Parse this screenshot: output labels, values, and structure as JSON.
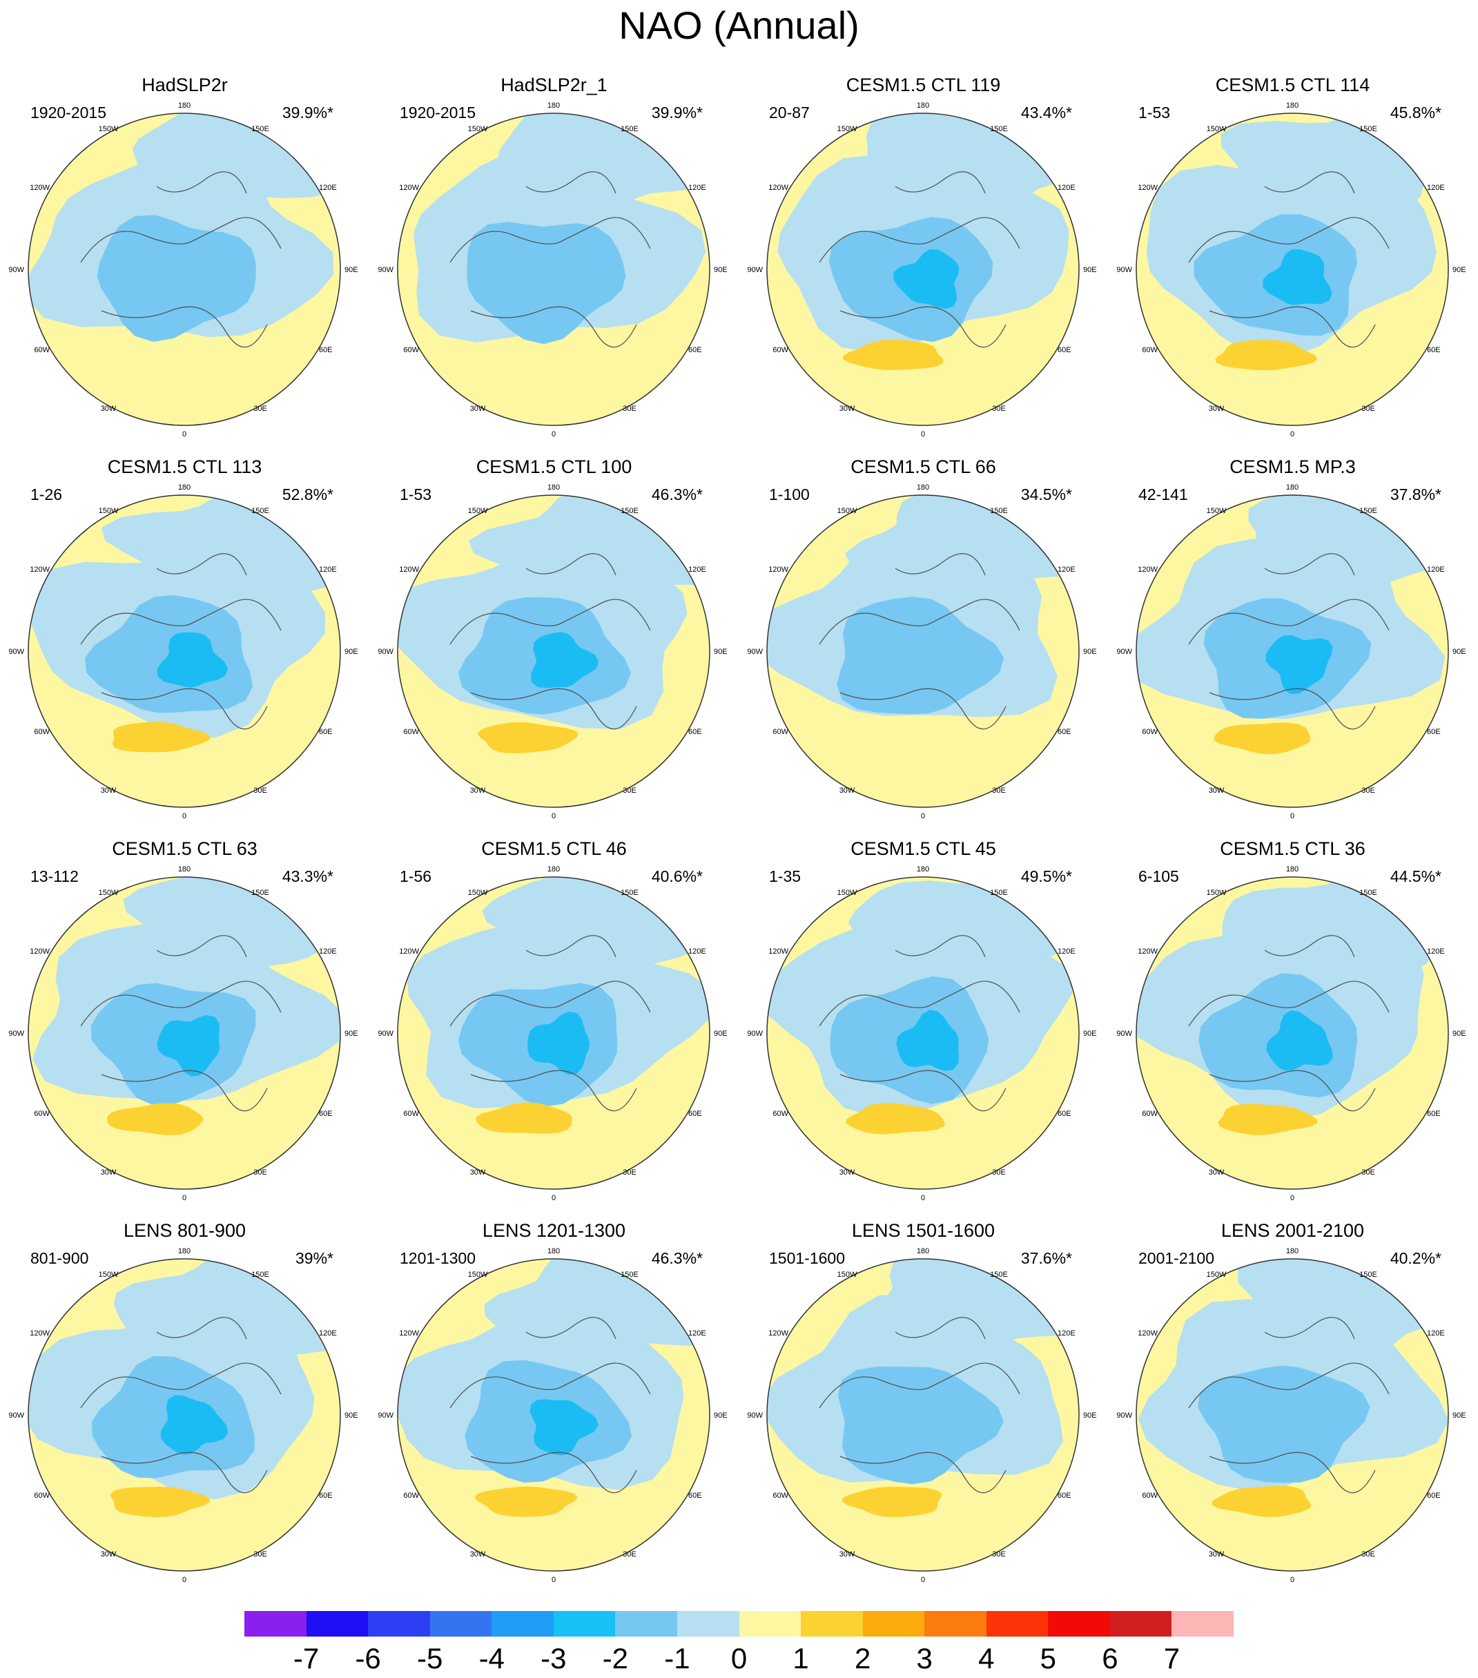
{
  "title": "NAO (Annual)",
  "panel_labels": {
    "top": "180",
    "bottom": "0",
    "left_mid": "90W",
    "right_mid": "90E",
    "upper_left_1": "150W",
    "upper_left_2": "120W",
    "upper_right_1": "150E",
    "upper_right_2": "120E",
    "lower_left_1": "60W",
    "lower_left_2": "30W",
    "lower_right_1": "60E",
    "lower_right_2": "30E"
  },
  "colors": {
    "ocean_base": "#fdf7a1",
    "neg1": "#b6dff2",
    "neg2": "#76c8f2",
    "neg3": "#1bbcf3",
    "pos1": "#fcd232",
    "coast": "#555555"
  },
  "chart_data": {
    "type": "contour-map-grid",
    "title": "NAO (Annual)",
    "projection": "north polar stereographic",
    "panels": [
      {
        "title": "HadSLP2r",
        "years": "1920-2015",
        "variance": "39.9%*",
        "max_negative": -2,
        "max_positive": 0
      },
      {
        "title": "HadSLP2r_1",
        "years": "1920-2015",
        "variance": "39.9%*",
        "max_negative": -2,
        "max_positive": 0
      },
      {
        "title": "CESM1.5 CTL 119",
        "years": "20-87",
        "variance": "43.4%*",
        "max_negative": -3,
        "max_positive": 2
      },
      {
        "title": "CESM1.5 CTL 114",
        "years": "1-53",
        "variance": "45.8%*",
        "max_negative": -3,
        "max_positive": 2
      },
      {
        "title": "CESM1.5 CTL 113",
        "years": "1-26",
        "variance": "52.8%*",
        "max_negative": -3,
        "max_positive": 2
      },
      {
        "title": "CESM1.5 CTL 100",
        "years": "1-53",
        "variance": "46.3%*",
        "max_negative": -3,
        "max_positive": 2
      },
      {
        "title": "CESM1.5 CTL 66",
        "years": "1-100",
        "variance": "34.5%*",
        "max_negative": -2,
        "max_positive": 0
      },
      {
        "title": "CESM1.5 MP.3",
        "years": "42-141",
        "variance": "37.8%*",
        "max_negative": -3,
        "max_positive": 2
      },
      {
        "title": "CESM1.5 CTL 63",
        "years": "13-112",
        "variance": "43.3%*",
        "max_negative": -3,
        "max_positive": 2
      },
      {
        "title": "CESM1.5 CTL 46",
        "years": "1-56",
        "variance": "40.6%*",
        "max_negative": -3,
        "max_positive": 2
      },
      {
        "title": "CESM1.5 CTL 45",
        "years": "1-35",
        "variance": "49.5%*",
        "max_negative": -3,
        "max_positive": 2
      },
      {
        "title": "CESM1.5 CTL 36",
        "years": "6-105",
        "variance": "44.5%*",
        "max_negative": -3,
        "max_positive": 2
      },
      {
        "title": "LENS 801-900",
        "years": "801-900",
        "variance": "39%*",
        "max_negative": -3,
        "max_positive": 2
      },
      {
        "title": "LENS 1201-1300",
        "years": "1201-1300",
        "variance": "46.3%*",
        "max_negative": -3,
        "max_positive": 2
      },
      {
        "title": "LENS 1501-1600",
        "years": "1501-1600",
        "variance": "37.6%*",
        "max_negative": -2,
        "max_positive": 2
      },
      {
        "title": "LENS 2001-2100",
        "years": "2001-2100",
        "variance": "40.2%*",
        "max_negative": -2,
        "max_positive": 2
      }
    ],
    "colorbar": {
      "labels": [
        "-7",
        "-6",
        "-5",
        "-4",
        "-3",
        "-2",
        "-1",
        "0",
        "1",
        "2",
        "3",
        "4",
        "5",
        "6",
        "7"
      ],
      "colors": [
        "#8a1ff0",
        "#1f0ff5",
        "#2d3ff2",
        "#3375f0",
        "#209df5",
        "#16c1f5",
        "#76c8f2",
        "#b6dff2",
        "#fdf7a1",
        "#fcd232",
        "#fbab0b",
        "#fb7b0c",
        "#fb3307",
        "#f10a06",
        "#d11e1e",
        "#fcb6b6"
      ]
    }
  }
}
